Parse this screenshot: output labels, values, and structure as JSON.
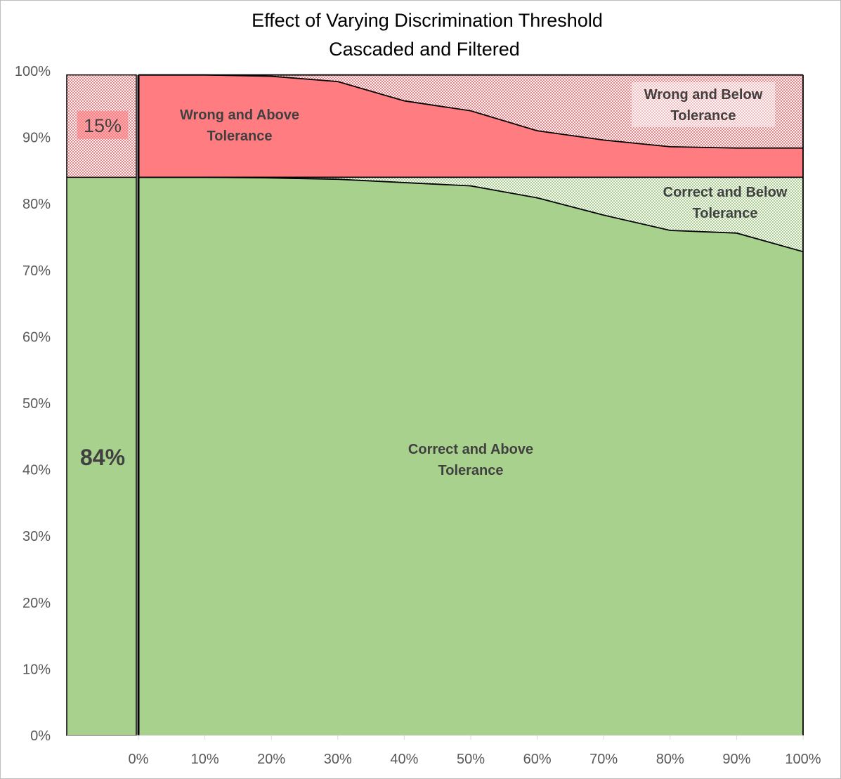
{
  "chart_data": {
    "type": "area",
    "title": "Effect of Varying Discrimination Threshold",
    "subtitle": "Cascaded and Filtered",
    "x_ticks": [
      "0%",
      "10%",
      "20%",
      "30%",
      "40%",
      "50%",
      "60%",
      "70%",
      "80%",
      "90%",
      "100%"
    ],
    "y_ticks": [
      "0%",
      "10%",
      "20%",
      "30%",
      "40%",
      "50%",
      "60%",
      "70%",
      "80%",
      "90%",
      "100%"
    ],
    "ylim": [
      0,
      100
    ],
    "xlim": [
      0,
      100
    ],
    "x": [
      0,
      10,
      20,
      30,
      40,
      50,
      60,
      70,
      80,
      90,
      100
    ],
    "baseline": {
      "correct_pct": 84,
      "wrong_pct": 15,
      "correct_label": "84%",
      "wrong_label": "15%"
    },
    "series": [
      {
        "name": "Correct and Above Tolerance",
        "values": [
          84.0,
          84.0,
          83.9,
          83.7,
          83.2,
          82.7,
          80.9,
          78.3,
          76.0,
          75.6,
          72.8
        ],
        "color": "#a9d18e"
      },
      {
        "name": "Correct and Below Tolerance",
        "top_values": [
          84.0,
          84.0,
          84.0,
          84.0,
          84.0,
          84.0,
          84.0,
          84.0,
          84.0,
          84.0,
          84.0
        ],
        "color": "#a9d18e"
      },
      {
        "name": "Wrong and Above Tolerance",
        "values": [
          99.4,
          99.4,
          99.2,
          98.4,
          95.5,
          94.0,
          91.0,
          89.6,
          88.6,
          88.4,
          88.4
        ],
        "color": "#ff7c80"
      },
      {
        "name": "Wrong and Below Tolerance",
        "top_values": [
          99.4,
          99.4,
          99.4,
          99.4,
          99.4,
          99.4,
          99.4,
          99.4,
          99.4,
          99.4,
          99.4
        ],
        "color": "#ff7c80"
      }
    ],
    "labels": {
      "wrong_above": [
        "Wrong and Above",
        "Tolerance"
      ],
      "wrong_below": [
        "Wrong and Below",
        "Tolerance"
      ],
      "correct_below": [
        "Correct and Below",
        "Tolerance"
      ],
      "correct_above": [
        "Correct and Above",
        "Tolerance"
      ]
    },
    "grid": false,
    "legend": "none"
  }
}
